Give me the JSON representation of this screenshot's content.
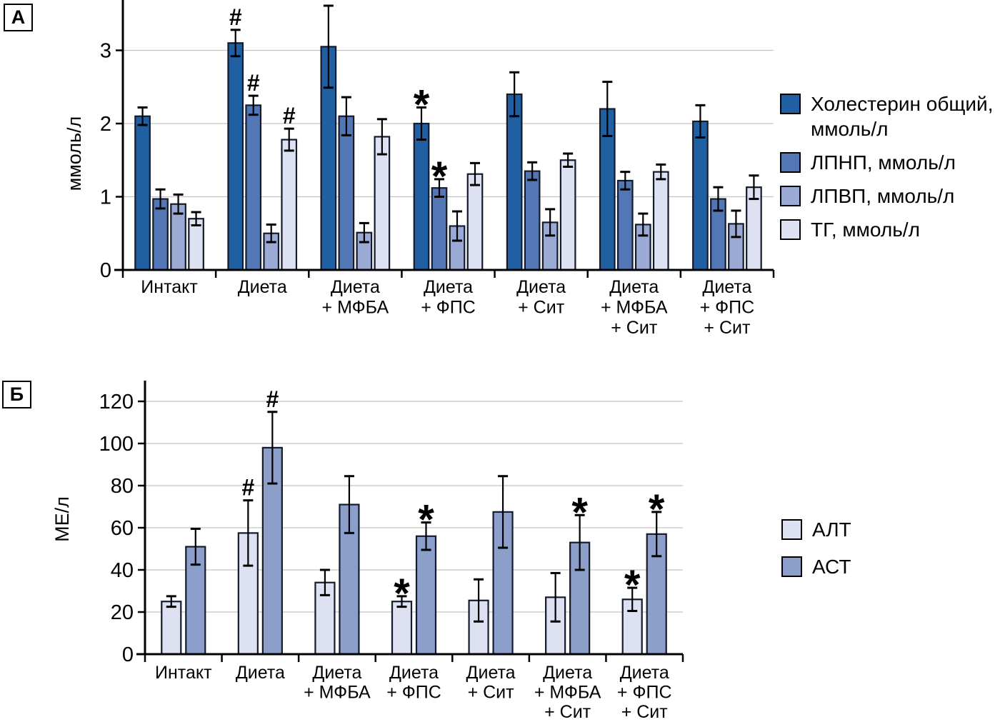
{
  "page": {
    "background": "#ffffff"
  },
  "chart_data": [
    {
      "panel_label": "А",
      "type": "bar",
      "title": "",
      "xlabel": "",
      "ylabel": "ммоль/л",
      "ylim": [
        0,
        3.69
      ],
      "yticks": [
        0,
        1,
        2,
        3
      ],
      "grid": true,
      "legend_position": "right",
      "categories": [
        "Интакт",
        "Диета",
        "Диета + МФБА",
        "Диета + ФПС",
        "Диета + Сит",
        "Диета + МФБА + Сит",
        "Диета + ФПС + Сит"
      ],
      "category_lines": [
        [
          "Интакт"
        ],
        [
          "Диета"
        ],
        [
          "Диета",
          "+ МФБА"
        ],
        [
          "Диета",
          "+ ФПС"
        ],
        [
          "Диета",
          "+ Сит"
        ],
        [
          "Диета",
          "+ МФБА",
          "+ Сит"
        ],
        [
          "Диета",
          "+ ФПС",
          "+ Сит"
        ]
      ],
      "significance_note_symbols": [
        "#",
        "*"
      ],
      "series": [
        {
          "name": "Холестерин общий, ммоль/л",
          "color": "#215fa3",
          "values": [
            2.1,
            3.1,
            3.05,
            2.0,
            2.4,
            2.2,
            2.03
          ],
          "errors": [
            0.12,
            0.18,
            0.56,
            0.22,
            0.3,
            0.37,
            0.22
          ],
          "marks": [
            "",
            "#",
            "",
            "*",
            "",
            "",
            ""
          ]
        },
        {
          "name": "ЛПНП, ммоль/л",
          "color": "#5377b4",
          "values": [
            0.97,
            2.25,
            2.1,
            1.12,
            1.35,
            1.22,
            0.97
          ],
          "errors": [
            0.13,
            0.13,
            0.26,
            0.12,
            0.12,
            0.12,
            0.16
          ],
          "marks": [
            "",
            "#",
            "",
            "*",
            "",
            "",
            ""
          ]
        },
        {
          "name": "ЛПВП, ммоль/л",
          "color": "#9aaad4",
          "values": [
            0.9,
            0.5,
            0.51,
            0.6,
            0.65,
            0.62,
            0.63
          ],
          "errors": [
            0.13,
            0.12,
            0.13,
            0.2,
            0.18,
            0.15,
            0.18
          ],
          "marks": [
            "",
            "",
            "",
            "",
            "",
            "",
            ""
          ]
        },
        {
          "name": "ТГ, ммоль/л",
          "color": "#dde1f1",
          "values": [
            0.7,
            1.78,
            1.82,
            1.31,
            1.5,
            1.34,
            1.13
          ],
          "errors": [
            0.09,
            0.15,
            0.24,
            0.15,
            0.09,
            0.1,
            0.16
          ],
          "marks": [
            "",
            "#",
            "",
            "",
            "",
            "",
            ""
          ]
        }
      ]
    },
    {
      "panel_label": "Б",
      "type": "bar",
      "title": "",
      "xlabel": "",
      "ylabel": "МЕ/л",
      "ylim": [
        0,
        130
      ],
      "yticks": [
        0,
        20,
        40,
        60,
        80,
        100,
        120
      ],
      "grid": true,
      "legend_position": "right",
      "categories": [
        "Интакт",
        "Диета",
        "Диета + МФБА",
        "Диета + ФПС",
        "Диета + Сит",
        "Диета + МФБА + Сит",
        "Диета + ФПС + Сит"
      ],
      "category_lines": [
        [
          "Интакт"
        ],
        [
          "Диета"
        ],
        [
          "Диета",
          "+ МФБА"
        ],
        [
          "Диета",
          "+ ФПС"
        ],
        [
          "Диета",
          "+ Сит"
        ],
        [
          "Диета",
          "+ МФБА",
          "+ Сит"
        ],
        [
          "Диета",
          "+ ФПС",
          "+ Сит"
        ]
      ],
      "significance_note_symbols": [
        "#",
        "*"
      ],
      "series": [
        {
          "name": "АЛТ",
          "color": "#dde1f1",
          "values": [
            25,
            57.5,
            34,
            25,
            25.5,
            27,
            26
          ],
          "errors": [
            2.5,
            15.5,
            6,
            2.5,
            10,
            11.5,
            5.5
          ],
          "marks": [
            "",
            "#",
            "",
            "*",
            "",
            "",
            "*"
          ]
        },
        {
          "name": "АСТ",
          "color": "#8c9fcb",
          "values": [
            51,
            98,
            71,
            56,
            67.5,
            53,
            57
          ],
          "errors": [
            8.5,
            17,
            13.5,
            6.5,
            17,
            13,
            10.5
          ],
          "marks": [
            "",
            "#",
            "",
            "*",
            "",
            "*",
            "*"
          ]
        }
      ]
    }
  ]
}
